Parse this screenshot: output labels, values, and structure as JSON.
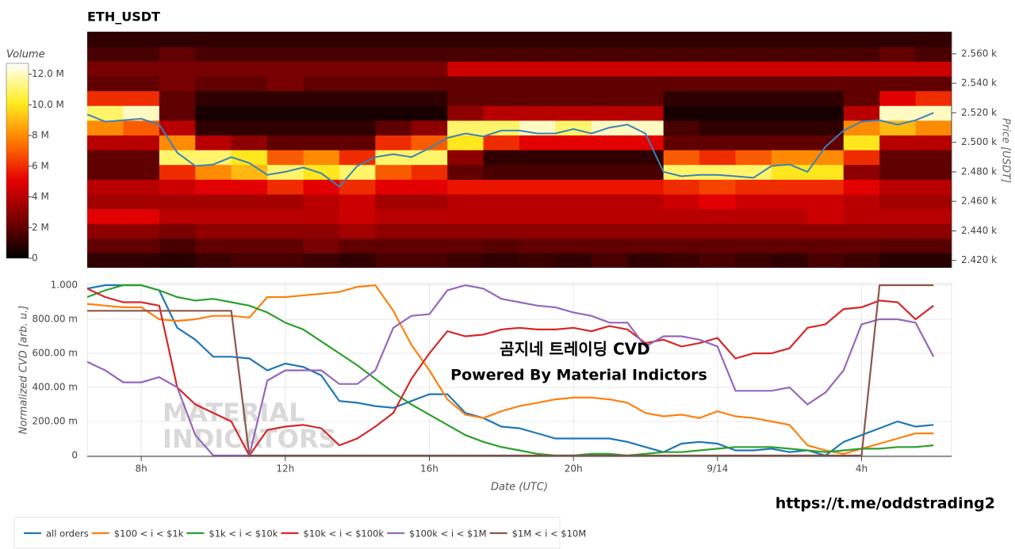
{
  "chart_data": [
    {
      "type": "heatmap",
      "title": "ETH_USDT",
      "x_bins": [
        6.5,
        7.5,
        8.5,
        9.5,
        10.5,
        11.5,
        12.5,
        13.5,
        14.5,
        15.5,
        16.5,
        17.5,
        18.5,
        19.5,
        20.5,
        21.5,
        22.5,
        23.5,
        24.5,
        25.5,
        26.5,
        27.5,
        28.5,
        29.5,
        30.5
      ],
      "y_bins": [
        2415,
        2425,
        2435,
        2445,
        2455,
        2465,
        2475,
        2485,
        2495,
        2505,
        2515,
        2525,
        2535,
        2545,
        2555,
        2565,
        2575
      ],
      "z": [
        [
          1,
          1,
          0.8,
          1.2,
          1.5,
          1.5,
          1.2,
          1,
          1.5,
          1.5,
          1.2,
          1,
          1.2,
          1,
          1.5,
          1,
          1.2,
          1.5,
          1.2,
          1,
          1.5,
          1.2,
          0.8,
          0.8
        ],
        [
          2,
          2,
          1.5,
          2,
          2,
          2,
          2.5,
          2,
          2,
          2,
          2,
          1.8,
          2,
          2,
          2,
          2,
          2,
          2,
          2,
          2,
          2,
          2,
          1.8,
          1.8
        ],
        [
          3,
          3,
          2.5,
          3,
          3,
          3,
          3,
          3.5,
          3,
          3,
          3,
          3,
          3,
          3,
          3,
          3,
          3,
          3,
          3,
          3,
          3,
          3,
          3,
          3
        ],
        [
          5,
          5,
          4,
          4,
          4,
          4,
          4,
          4.5,
          4,
          4,
          4,
          4,
          4,
          4,
          4,
          4,
          4,
          4,
          4,
          4,
          4.5,
          4,
          4,
          4
        ],
        [
          3.5,
          3.5,
          3.5,
          3.5,
          3.5,
          3.5,
          4,
          4.5,
          3.5,
          3.5,
          4,
          4,
          4,
          4,
          4,
          4,
          4.5,
          5,
          4.5,
          4.5,
          4.5,
          4,
          3.5,
          3.5
        ],
        [
          4,
          4,
          4.5,
          5,
          5,
          6,
          5,
          6,
          5,
          5,
          5.5,
          5.5,
          5.5,
          5.5,
          5.5,
          5.5,
          6,
          6.5,
          6,
          6,
          6,
          5,
          4,
          4
        ],
        [
          2,
          2,
          6,
          8,
          9,
          11,
          10,
          11,
          7,
          6,
          2,
          1.5,
          1.5,
          1.5,
          1.5,
          1.5,
          11,
          11,
          11,
          10,
          10,
          3,
          2,
          2
        ],
        [
          2,
          2,
          11,
          11,
          10,
          7,
          8,
          6,
          11,
          11,
          3,
          1,
          1,
          1,
          1,
          1,
          7,
          6,
          7,
          8,
          8,
          6,
          2,
          2
        ],
        [
          4,
          4,
          8,
          4,
          3,
          2,
          2,
          2,
          6,
          7,
          10,
          6,
          5,
          5,
          5,
          5,
          2,
          2,
          2,
          2,
          2,
          10,
          4,
          4
        ],
        [
          8,
          7,
          4,
          1,
          1,
          1,
          1,
          1,
          2,
          3,
          11,
          11,
          12,
          11,
          12,
          12,
          1.5,
          1,
          1,
          1,
          1,
          8,
          9,
          8
        ],
        [
          11,
          12,
          2,
          0.5,
          0.5,
          0.5,
          0.5,
          0.5,
          0.5,
          0.5,
          3,
          4,
          4,
          4,
          4,
          4,
          0.5,
          0.5,
          0.5,
          0.5,
          0.5,
          4,
          12,
          12
        ],
        [
          6,
          6,
          2,
          1,
          1,
          1,
          1,
          1,
          1,
          1,
          2,
          2,
          2,
          2,
          2,
          2,
          1,
          1,
          1,
          1,
          1,
          2,
          5,
          6
        ],
        [
          2,
          2,
          2.5,
          2,
          2,
          2.5,
          2,
          2,
          2,
          2,
          2,
          2,
          2,
          2,
          2,
          2,
          2,
          2,
          2,
          2,
          2,
          2,
          2,
          2
        ],
        [
          2.5,
          2.5,
          2.5,
          2.5,
          2.5,
          2.5,
          2.5,
          2.5,
          2.5,
          2.5,
          4.5,
          4.5,
          4.5,
          4.5,
          4.5,
          4.5,
          4.5,
          4.5,
          4.5,
          4.5,
          4.5,
          4.5,
          4.5,
          4.5
        ],
        [
          1.5,
          1.5,
          2,
          1.5,
          1.5,
          1.5,
          1.5,
          1.5,
          1.5,
          1.5,
          1.5,
          1.5,
          1.5,
          1.5,
          1.5,
          1.5,
          1.5,
          1.5,
          1.5,
          1.5,
          1.5,
          1.5,
          2,
          1.5
        ],
        [
          1,
          1,
          1,
          1,
          1,
          1,
          1,
          1,
          1,
          1,
          1,
          1,
          1,
          1,
          1,
          1,
          1,
          1,
          1,
          1,
          1,
          1,
          1,
          1
        ]
      ],
      "colormap": [
        "#000000",
        "#7a0000",
        "#e60000",
        "#ff7a00",
        "#ffee20",
        "#ffffff"
      ],
      "colorbar": {
        "title": "Volume",
        "lim": [
          0,
          12.7
        ],
        "ticks": [
          0,
          {
            "value": 2,
            "label": "2 M"
          },
          {
            "value": 4,
            "label": "4 M"
          },
          {
            "value": 6,
            "label": "6 M"
          },
          {
            "value": 8,
            "label": "8 M"
          },
          {
            "value": 10,
            "label": "10.0 M"
          },
          {
            "value": 12,
            "label": "12.0 M"
          }
        ]
      },
      "xlim": [
        6.5,
        30.5
      ],
      "ylim": [
        2415,
        2575
      ],
      "y_label": "Price [USDT]",
      "yticks": [
        {
          "value": 2420,
          "label": "2.420 k"
        },
        {
          "value": 2440,
          "label": "2.440 k"
        },
        {
          "value": 2460,
          "label": "2.460 k"
        },
        {
          "value": 2480,
          "label": "2.480 k"
        },
        {
          "value": 2500,
          "label": "2.500 k"
        },
        {
          "value": 2520,
          "label": "2.520 k"
        },
        {
          "value": 2540,
          "label": "2.540 k"
        },
        {
          "value": 2560,
          "label": "2.560 k"
        }
      ],
      "price_line": {
        "color": "#3b82b8",
        "x": [
          6.5,
          7,
          7.5,
          8,
          8.5,
          9,
          9.5,
          10,
          10.5,
          11,
          11.5,
          12,
          12.5,
          13,
          13.5,
          14,
          14.5,
          15,
          15.5,
          16,
          16.5,
          17,
          17.5,
          18,
          18.5,
          19,
          19.5,
          20,
          20.5,
          21,
          21.5,
          22,
          22.5,
          23,
          23.5,
          24,
          24.5,
          25,
          25.5,
          26,
          26.5,
          27,
          27.5,
          28,
          28.5,
          29,
          29.5,
          30
        ],
        "values": [
          2519,
          2514,
          2515,
          2516,
          2512,
          2493,
          2484,
          2485,
          2490,
          2486,
          2478,
          2480,
          2483,
          2479,
          2470,
          2484,
          2490,
          2492,
          2490,
          2496,
          2503,
          2506,
          2504,
          2508,
          2508,
          2506,
          2506,
          2509,
          2506,
          2510,
          2512,
          2506,
          2480,
          2477,
          2478,
          2478,
          2477,
          2476,
          2484,
          2485,
          2480,
          2497,
          2508,
          2514,
          2515,
          2512,
          2515,
          2520
        ]
      }
    },
    {
      "type": "line",
      "x": [
        6.5,
        7,
        7.5,
        8,
        8.5,
        9,
        9.5,
        10,
        10.5,
        11,
        11.5,
        12,
        12.5,
        13,
        13.5,
        14,
        14.5,
        15,
        15.5,
        16,
        16.5,
        17,
        17.5,
        18,
        18.5,
        19,
        19.5,
        20,
        20.5,
        21,
        21.5,
        22,
        22.5,
        23,
        23.5,
        24,
        24.5,
        25,
        25.5,
        26,
        26.5,
        27,
        27.5,
        28,
        28.5,
        29,
        29.5,
        30
      ],
      "series": [
        {
          "name": "all orders",
          "color": "#1f77b4",
          "values": [
            0.98,
            1,
            1,
            1,
            0.97,
            0.75,
            0.68,
            0.58,
            0.58,
            0.57,
            0.5,
            0.54,
            0.52,
            0.47,
            0.32,
            0.31,
            0.29,
            0.28,
            0.32,
            0.36,
            0.36,
            0.25,
            0.22,
            0.17,
            0.16,
            0.13,
            0.1,
            0.1,
            0.1,
            0.1,
            0.08,
            0.05,
            0.02,
            0.07,
            0.08,
            0.07,
            0.03,
            0.03,
            0.04,
            0.02,
            0.03,
            0,
            0.08,
            0.12,
            0.16,
            0.2,
            0.17,
            0.18
          ]
        },
        {
          "name": "$100 < i < $1k",
          "color": "#ff7f0e",
          "values": [
            0.89,
            0.88,
            0.87,
            0.87,
            0.8,
            0.79,
            0.8,
            0.82,
            0.82,
            0.81,
            0.93,
            0.93,
            0.94,
            0.95,
            0.96,
            0.99,
            1,
            0.85,
            0.65,
            0.5,
            0.33,
            0.24,
            0.22,
            0.26,
            0.29,
            0.31,
            0.33,
            0.34,
            0.34,
            0.33,
            0.31,
            0.25,
            0.23,
            0.24,
            0.22,
            0.26,
            0.23,
            0.22,
            0.2,
            0.18,
            0.06,
            0.03,
            0.01,
            0.04,
            0.07,
            0.1,
            0.13,
            0.13
          ]
        },
        {
          "name": "$1k < i < $10k",
          "color": "#2ca02c",
          "values": [
            0.93,
            0.97,
            1,
            1,
            0.97,
            0.93,
            0.91,
            0.92,
            0.9,
            0.88,
            0.84,
            0.78,
            0.74,
            0.67,
            0.6,
            0.53,
            0.45,
            0.37,
            0.3,
            0.24,
            0.18,
            0.12,
            0.08,
            0.05,
            0.03,
            0.01,
            0,
            0,
            0.01,
            0.01,
            0,
            0.01,
            0.02,
            0.02,
            0.03,
            0.04,
            0.05,
            0.05,
            0.05,
            0.04,
            0.03,
            0.02,
            0.03,
            0.04,
            0.04,
            0.05,
            0.05,
            0.06
          ]
        },
        {
          "name": "$10k < i < $100k",
          "color": "#d62728",
          "values": [
            0.98,
            0.93,
            0.9,
            0.9,
            0.88,
            0.4,
            0.3,
            0.25,
            0.2,
            0,
            0.15,
            0.17,
            0.18,
            0.16,
            0.06,
            0.1,
            0.17,
            0.25,
            0.45,
            0.6,
            0.73,
            0.7,
            0.71,
            0.74,
            0.75,
            0.74,
            0.74,
            0.75,
            0.73,
            0.76,
            0.74,
            0.66,
            0.68,
            0.64,
            0.66,
            0.69,
            0.57,
            0.6,
            0.6,
            0.63,
            0.75,
            0.77,
            0.86,
            0.87,
            0.91,
            0.9,
            0.8,
            0.88
          ]
        },
        {
          "name": "$100k < i < $1M",
          "color": "#9467bd",
          "values": [
            0.55,
            0.5,
            0.43,
            0.43,
            0.46,
            0.4,
            0.12,
            0,
            0,
            0,
            0.44,
            0.5,
            0.5,
            0.5,
            0.42,
            0.42,
            0.5,
            0.75,
            0.82,
            0.83,
            0.97,
            1,
            0.98,
            0.92,
            0.9,
            0.88,
            0.87,
            0.84,
            0.82,
            0.78,
            0.78,
            0.64,
            0.7,
            0.7,
            0.68,
            0.64,
            0.38,
            0.38,
            0.38,
            0.4,
            0.3,
            0.37,
            0.5,
            0.77,
            0.8,
            0.8,
            0.78,
            0.58
          ]
        },
        {
          "name": "$1M < i < $10M",
          "color": "#8c564b",
          "values": [
            0.85,
            0.85,
            0.85,
            0.85,
            0.85,
            0.85,
            0.85,
            0.85,
            0.85,
            0,
            0,
            0,
            0,
            0,
            0,
            0,
            0,
            0,
            0,
            0,
            0,
            0,
            0,
            0,
            0,
            0,
            0,
            0,
            0,
            0,
            0,
            0,
            0,
            0,
            0,
            0,
            0,
            0,
            0,
            0,
            0,
            0,
            0,
            0,
            1,
            1,
            1,
            1
          ]
        }
      ],
      "xlim": [
        6.5,
        30.5
      ],
      "ylim": [
        0,
        1
      ],
      "xticks": [
        {
          "value": 8,
          "label": "8h"
        },
        {
          "value": 12,
          "label": "12h"
        },
        {
          "value": 16,
          "label": "16h"
        },
        {
          "value": 20,
          "label": "20h"
        },
        {
          "value": 24,
          "label": "9/14"
        },
        {
          "value": 28,
          "label": "4h"
        }
      ],
      "yticks": [
        0,
        {
          "value": 0.2,
          "label": "200.00 m"
        },
        {
          "value": 0.4,
          "label": "400.00 m"
        },
        {
          "value": 0.6,
          "label": "600.00 m"
        },
        {
          "value": 0.8,
          "label": "800.00 m"
        },
        {
          "value": 1,
          "label": "1.000"
        }
      ],
      "x_label": "Date (UTC)",
      "y_label": "Normalized CVD [arb. u.]",
      "grid": true,
      "legend": "bottom",
      "annotations": [
        "곰지네 트레이딩 CVD",
        "Powered By Material Indictors"
      ],
      "watermark": [
        "MATERIAL",
        "INDICATORS"
      ]
    }
  ],
  "footer_link": "https://t.me/oddstrading2"
}
